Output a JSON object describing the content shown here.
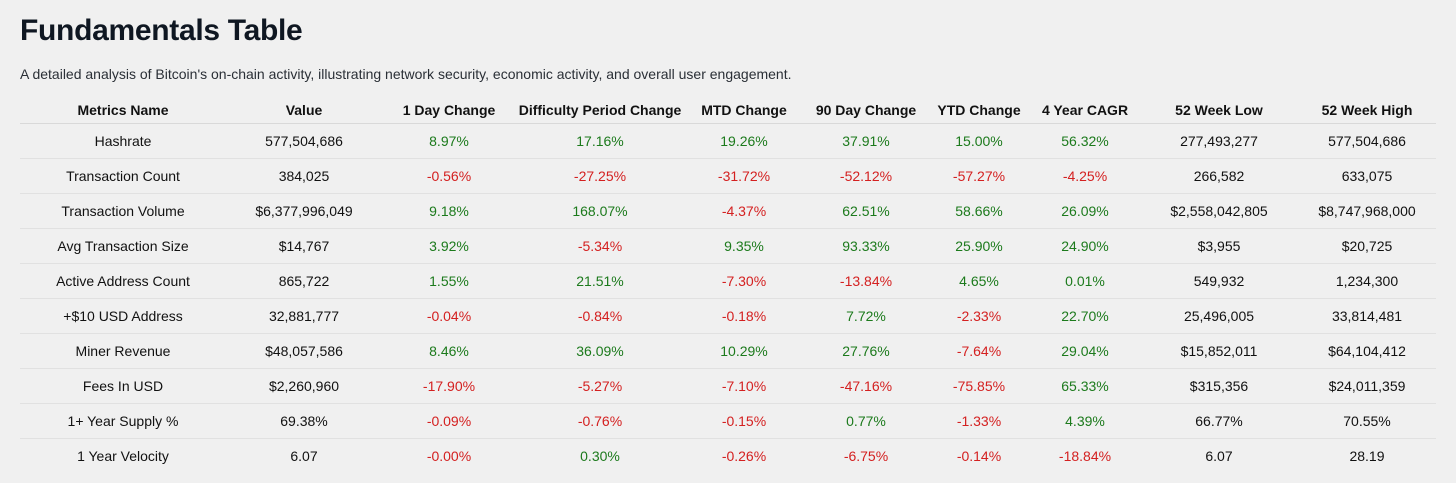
{
  "page": {
    "title": "Fundamentals Table",
    "subtitle": "A detailed analysis of Bitcoin's on-chain activity, illustrating network security, economic activity, and overall user engagement."
  },
  "table": {
    "columns": [
      "Metrics Name",
      "Value",
      "1 Day Change",
      "Difficulty Period Change",
      "MTD Change",
      "90 Day Change",
      "YTD Change",
      "4 Year CAGR",
      "52 Week Low",
      "52 Week High"
    ],
    "colors": {
      "positive": "#1c7a1c",
      "negative": "#d42020"
    },
    "rows": [
      [
        "Hashrate",
        "577,504,686",
        "8.97%",
        "17.16%",
        "19.26%",
        "37.91%",
        "15.00%",
        "56.32%",
        "277,493,277",
        "577,504,686"
      ],
      [
        "Transaction Count",
        "384,025",
        "-0.56%",
        "-27.25%",
        "-31.72%",
        "-52.12%",
        "-57.27%",
        "-4.25%",
        "266,582",
        "633,075"
      ],
      [
        "Transaction Volume",
        "$6,377,996,049",
        "9.18%",
        "168.07%",
        "-4.37%",
        "62.51%",
        "58.66%",
        "26.09%",
        "$2,558,042,805",
        "$8,747,968,000"
      ],
      [
        "Avg Transaction Size",
        "$14,767",
        "3.92%",
        "-5.34%",
        "9.35%",
        "93.33%",
        "25.90%",
        "24.90%",
        "$3,955",
        "$20,725"
      ],
      [
        "Active Address Count",
        "865,722",
        "1.55%",
        "21.51%",
        "-7.30%",
        "-13.84%",
        "4.65%",
        "0.01%",
        "549,932",
        "1,234,300"
      ],
      [
        "+$10 USD Address",
        "32,881,777",
        "-0.04%",
        "-0.84%",
        "-0.18%",
        "7.72%",
        "-2.33%",
        "22.70%",
        "25,496,005",
        "33,814,481"
      ],
      [
        "Miner Revenue",
        "$48,057,586",
        "8.46%",
        "36.09%",
        "10.29%",
        "27.76%",
        "-7.64%",
        "29.04%",
        "$15,852,011",
        "$64,104,412"
      ],
      [
        "Fees In USD",
        "$2,260,960",
        "-17.90%",
        "-5.27%",
        "-7.10%",
        "-47.16%",
        "-75.85%",
        "65.33%",
        "$315,356",
        "$24,011,359"
      ],
      [
        "1+ Year Supply %",
        "69.38%",
        "-0.09%",
        "-0.76%",
        "-0.15%",
        "0.77%",
        "-1.33%",
        "4.39%",
        "66.77%",
        "70.55%"
      ],
      [
        "1 Year Velocity",
        "6.07",
        "-0.00%",
        "0.30%",
        "-0.26%",
        "-6.75%",
        "-0.14%",
        "-18.84%",
        "6.07",
        "28.19"
      ]
    ]
  }
}
